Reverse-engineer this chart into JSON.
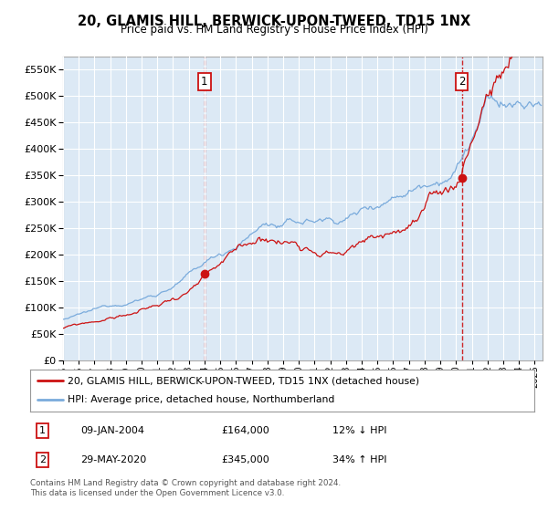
{
  "title": "20, GLAMIS HILL, BERWICK-UPON-TWEED, TD15 1NX",
  "subtitle": "Price paid vs. HM Land Registry's House Price Index (HPI)",
  "yticks": [
    0,
    50000,
    100000,
    150000,
    200000,
    250000,
    300000,
    350000,
    400000,
    450000,
    500000,
    550000
  ],
  "ylim": [
    0,
    575000
  ],
  "xlim_start": 1995.0,
  "xlim_end": 2025.5,
  "xticks": [
    1995,
    1996,
    1997,
    1998,
    1999,
    2000,
    2001,
    2002,
    2003,
    2004,
    2005,
    2006,
    2007,
    2008,
    2009,
    2010,
    2011,
    2012,
    2013,
    2014,
    2015,
    2016,
    2017,
    2018,
    2019,
    2020,
    2021,
    2022,
    2023,
    2024,
    2025
  ],
  "hpi_color": "#7aabdc",
  "sold_color": "#cc1111",
  "background_color": "#dce9f5",
  "grid_color": "#ffffff",
  "sale1_x": 2004.0,
  "sale1_y": 164000,
  "sale2_x": 2020.37,
  "sale2_y": 345000,
  "legend_line1": "20, GLAMIS HILL, BERWICK-UPON-TWEED, TD15 1NX (detached house)",
  "legend_line2": "HPI: Average price, detached house, Northumberland",
  "footer": "Contains HM Land Registry data © Crown copyright and database right 2024.\nThis data is licensed under the Open Government Licence v3.0.",
  "table_row1": [
    "1",
    "09-JAN-2004",
    "£164,000",
    "12% ↓ HPI"
  ],
  "table_row2": [
    "2",
    "29-MAY-2020",
    "£345,000",
    "34% ↑ HPI"
  ]
}
